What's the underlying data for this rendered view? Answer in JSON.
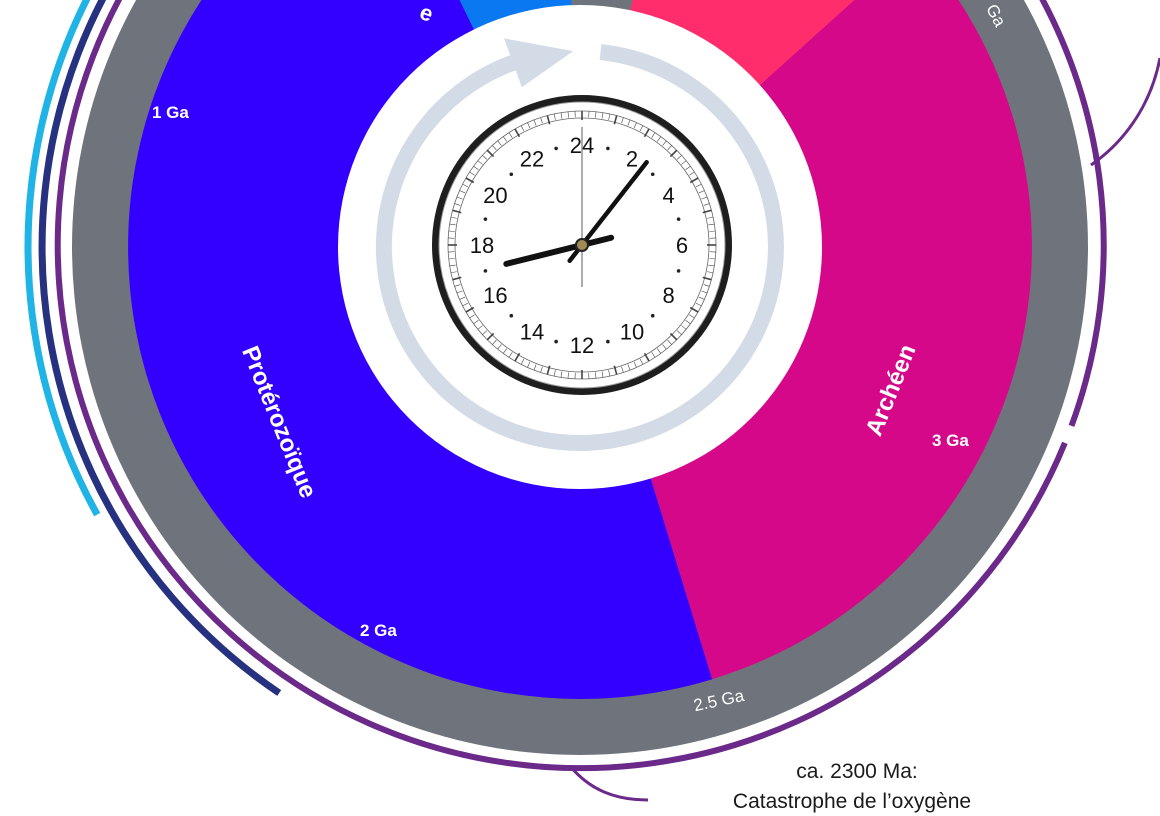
{
  "colors": {
    "proterozoic": "#3300ff",
    "archean": "#d6088a",
    "hadean_strip": "#ff2d6b",
    "phanerozoic_strip": "#0a78f0",
    "gray_ring": "#6f737b",
    "purple_arc": "#6b2a8a",
    "navy_arc": "#263280",
    "cyan_arc": "#1fb3e6",
    "cycle_arrow": "#d3dbe6"
  },
  "eons": {
    "proterozoic": "Protérozoïque",
    "archean": "Archéen",
    "top_partial": "e"
  },
  "time_ticks": {
    "t1": "1 Ga",
    "t2": "2 Ga",
    "t3": "3 Ga",
    "t25": "2.5 Ga",
    "t_top": "Ga"
  },
  "clock": {
    "numbers": [
      "24",
      "2",
      "4",
      "6",
      "8",
      "10",
      "12",
      "14",
      "16",
      "18",
      "20",
      "22"
    ],
    "hour_hand_angle_deg": 256,
    "minute_hand_angle_deg": 38,
    "second_hand_angle_deg": 0
  },
  "annotation": {
    "line1": "ca. 2300 Ma:",
    "line2": "Catastrophe de l’oxygène"
  }
}
